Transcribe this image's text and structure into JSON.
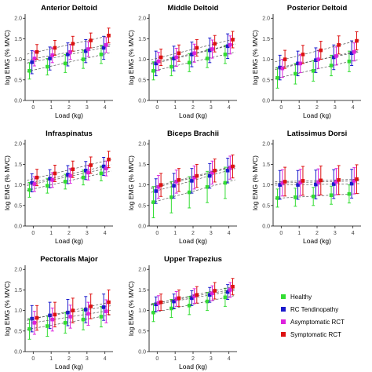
{
  "figure": {
    "legend": [
      {
        "name": "Healthy",
        "color": "#33dd33"
      },
      {
        "name": "RC Tendinopathy",
        "color": "#1a1acc"
      },
      {
        "name": "Asymptomatic RCT",
        "color": "#dd22dd"
      },
      {
        "name": "Symptomatic RCT",
        "color": "#dd1111"
      }
    ]
  },
  "chart_data": [
    {
      "type": "scatter",
      "title": "Anterior Deltoid",
      "xlabel": "Load (kg)",
      "ylabel": "log EMG (% MVC)",
      "xlim": [
        -0.45,
        4.45
      ],
      "ylim": [
        0,
        2.1
      ],
      "x_ticks": [
        0,
        1,
        2,
        3,
        4
      ],
      "y_ticks": [
        "0.0",
        "0.5",
        "1.0",
        "1.5",
        "2.0"
      ],
      "x": [
        0,
        1,
        2,
        3,
        4
      ],
      "grid": false,
      "series": [
        {
          "name": "Healthy",
          "color": "#33dd33",
          "values": [
            0.72,
            0.82,
            0.9,
            1.0,
            1.12
          ],
          "err": [
            0.2,
            0.2,
            0.22,
            0.22,
            0.22
          ]
        },
        {
          "name": "RC Tendinopathy",
          "color": "#1a1acc",
          "values": [
            0.93,
            1.02,
            1.12,
            1.2,
            1.28
          ],
          "err": [
            0.28,
            0.28,
            0.28,
            0.28,
            0.28
          ]
        },
        {
          "name": "Asymptomatic RCT",
          "color": "#dd22dd",
          "values": [
            1.02,
            1.1,
            1.18,
            1.25,
            1.35
          ],
          "err": [
            0.18,
            0.18,
            0.18,
            0.18,
            0.18
          ]
        },
        {
          "name": "Symptomatic RCT",
          "color": "#dd1111",
          "values": [
            1.18,
            1.28,
            1.38,
            1.46,
            1.58
          ],
          "err": [
            0.18,
            0.18,
            0.18,
            0.18,
            0.18
          ]
        }
      ]
    },
    {
      "type": "scatter",
      "title": "Middle Deltoid",
      "xlabel": "Load (kg)",
      "ylabel": "log EMG (% MVC)",
      "xlim": [
        -0.45,
        4.45
      ],
      "ylim": [
        0,
        2.1
      ],
      "x_ticks": [
        0,
        1,
        2,
        3,
        4
      ],
      "y_ticks": [
        "0.0",
        "0.5",
        "1.0",
        "1.5",
        "2.0"
      ],
      "x": [
        0,
        1,
        2,
        3,
        4
      ],
      "grid": false,
      "series": [
        {
          "name": "Healthy",
          "color": "#33dd33",
          "values": [
            0.72,
            0.82,
            0.92,
            1.02,
            1.12
          ],
          "err": [
            0.22,
            0.22,
            0.22,
            0.22,
            0.22
          ]
        },
        {
          "name": "RC Tendinopathy",
          "color": "#1a1acc",
          "values": [
            0.9,
            1.02,
            1.12,
            1.22,
            1.32
          ],
          "err": [
            0.3,
            0.3,
            0.3,
            0.3,
            0.3
          ]
        },
        {
          "name": "Asymptomatic RCT",
          "color": "#dd22dd",
          "values": [
            0.95,
            1.05,
            1.15,
            1.25,
            1.35
          ],
          "err": [
            0.22,
            0.22,
            0.22,
            0.22,
            0.22
          ]
        },
        {
          "name": "Symptomatic RCT",
          "color": "#dd1111",
          "values": [
            1.05,
            1.15,
            1.28,
            1.38,
            1.48
          ],
          "err": [
            0.2,
            0.2,
            0.2,
            0.2,
            0.2
          ]
        }
      ]
    },
    {
      "type": "scatter",
      "title": "Posterior Deltoid",
      "xlabel": "Load (kg)",
      "ylabel": "log EMG (% MVC)",
      "xlim": [
        -0.45,
        4.45
      ],
      "ylim": [
        0,
        2.1
      ],
      "x_ticks": [
        0,
        1,
        2,
        3,
        4
      ],
      "y_ticks": [
        "0.0",
        "0.5",
        "1.0",
        "1.5",
        "2.0"
      ],
      "x": [
        0,
        1,
        2,
        3,
        4
      ],
      "grid": false,
      "series": [
        {
          "name": "Healthy",
          "color": "#33dd33",
          "values": [
            0.55,
            0.65,
            0.72,
            0.85,
            0.95
          ],
          "err": [
            0.25,
            0.25,
            0.25,
            0.25,
            0.25
          ]
        },
        {
          "name": "RC Tendinopathy",
          "color": "#1a1acc",
          "values": [
            0.8,
            0.9,
            0.98,
            1.05,
            1.15
          ],
          "err": [
            0.3,
            0.3,
            0.3,
            0.3,
            0.3
          ]
        },
        {
          "name": "Asymptomatic RCT",
          "color": "#dd22dd",
          "values": [
            0.78,
            0.9,
            1.0,
            1.08,
            1.18
          ],
          "err": [
            0.22,
            0.22,
            0.22,
            0.22,
            0.22
          ]
        },
        {
          "name": "Symptomatic RCT",
          "color": "#dd1111",
          "values": [
            1.0,
            1.12,
            1.22,
            1.35,
            1.45
          ],
          "err": [
            0.22,
            0.22,
            0.22,
            0.22,
            0.22
          ]
        }
      ]
    },
    {
      "type": "scatter",
      "title": "Infraspinatus",
      "xlabel": "Load (kg)",
      "ylabel": "log EMG (% MVC)",
      "xlim": [
        -0.45,
        4.45
      ],
      "ylim": [
        0,
        2.1
      ],
      "x_ticks": [
        0,
        1,
        2,
        3,
        4
      ],
      "y_ticks": [
        "0.0",
        "0.5",
        "1.0",
        "1.5",
        "2.0"
      ],
      "x": [
        0,
        1,
        2,
        3,
        4
      ],
      "grid": false,
      "series": [
        {
          "name": "Healthy",
          "color": "#33dd33",
          "values": [
            0.88,
            0.98,
            1.08,
            1.18,
            1.28
          ],
          "err": [
            0.18,
            0.18,
            0.18,
            0.18,
            0.18
          ]
        },
        {
          "name": "RC Tendinopathy",
          "color": "#1a1acc",
          "values": [
            1.05,
            1.15,
            1.25,
            1.35,
            1.45
          ],
          "err": [
            0.22,
            0.22,
            0.22,
            0.22,
            0.22
          ]
        },
        {
          "name": "Asymptomatic RCT",
          "color": "#dd22dd",
          "values": [
            1.02,
            1.12,
            1.22,
            1.3,
            1.4
          ],
          "err": [
            0.18,
            0.18,
            0.18,
            0.18,
            0.18
          ]
        },
        {
          "name": "Symptomatic RCT",
          "color": "#dd1111",
          "values": [
            1.18,
            1.28,
            1.38,
            1.48,
            1.62
          ],
          "err": [
            0.2,
            0.2,
            0.2,
            0.2,
            0.2
          ]
        }
      ]
    },
    {
      "type": "scatter",
      "title": "Biceps Brachii",
      "xlabel": "Load (kg)",
      "ylabel": "log EMG (% MVC)",
      "xlim": [
        -0.45,
        4.45
      ],
      "ylim": [
        0,
        2.1
      ],
      "x_ticks": [
        0,
        1,
        2,
        3,
        4
      ],
      "y_ticks": [
        "0.0",
        "0.5",
        "1.0",
        "1.5",
        "2.0"
      ],
      "x": [
        0,
        1,
        2,
        3,
        4
      ],
      "grid": false,
      "series": [
        {
          "name": "Healthy",
          "color": "#33dd33",
          "values": [
            0.58,
            0.7,
            0.82,
            0.95,
            1.05
          ],
          "err": [
            0.38,
            0.38,
            0.38,
            0.38,
            0.38
          ]
        },
        {
          "name": "RC Tendinopathy",
          "color": "#1a1acc",
          "values": [
            0.85,
            0.98,
            1.1,
            1.22,
            1.35
          ],
          "err": [
            0.3,
            0.3,
            0.3,
            0.3,
            0.3
          ]
        },
        {
          "name": "Asymptomatic RCT",
          "color": "#dd22dd",
          "values": [
            0.95,
            1.08,
            1.18,
            1.3,
            1.42
          ],
          "err": [
            0.28,
            0.28,
            0.28,
            0.28,
            0.28
          ]
        },
        {
          "name": "Symptomatic RCT",
          "color": "#dd1111",
          "values": [
            1.0,
            1.12,
            1.22,
            1.35,
            1.45
          ],
          "err": [
            0.28,
            0.28,
            0.28,
            0.28,
            0.28
          ]
        }
      ]
    },
    {
      "type": "scatter",
      "title": "Latissimus Dorsi",
      "xlabel": "Load (kg)",
      "ylabel": "log EMG (% MVC)",
      "xlim": [
        -0.45,
        4.45
      ],
      "ylim": [
        0,
        2.1
      ],
      "x_ticks": [
        0,
        1,
        2,
        3,
        4
      ],
      "y_ticks": [
        "0.0",
        "0.5",
        "1.0",
        "1.5",
        "2.0"
      ],
      "x": [
        0,
        1,
        2,
        3,
        4
      ],
      "grid": false,
      "series": [
        {
          "name": "Healthy",
          "color": "#33dd33",
          "values": [
            0.68,
            0.7,
            0.72,
            0.75,
            0.78
          ],
          "err": [
            0.22,
            0.22,
            0.22,
            0.22,
            0.22
          ]
        },
        {
          "name": "RC Tendinopathy",
          "color": "#1a1acc",
          "values": [
            1.0,
            1.0,
            1.01,
            1.02,
            1.03
          ],
          "err": [
            0.35,
            0.35,
            0.35,
            0.35,
            0.35
          ]
        },
        {
          "name": "Asymptomatic RCT",
          "color": "#dd22dd",
          "values": [
            1.05,
            1.06,
            1.07,
            1.08,
            1.1
          ],
          "err": [
            0.32,
            0.32,
            0.32,
            0.32,
            0.32
          ]
        },
        {
          "name": "Symptomatic RCT",
          "color": "#dd1111",
          "values": [
            1.08,
            1.1,
            1.11,
            1.12,
            1.14
          ],
          "err": [
            0.35,
            0.35,
            0.35,
            0.35,
            0.35
          ]
        }
      ]
    },
    {
      "type": "scatter",
      "title": "Pectoralis Major",
      "xlabel": "Load (kg)",
      "ylabel": "log EMG (% MVC)",
      "xlim": [
        -0.45,
        4.45
      ],
      "ylim": [
        0,
        2.1
      ],
      "x_ticks": [
        0,
        1,
        2,
        3,
        4
      ],
      "y_ticks": [
        "0.0",
        "0.5",
        "1.0",
        "1.5",
        "2.0"
      ],
      "x": [
        0,
        1,
        2,
        3,
        4
      ],
      "grid": false,
      "series": [
        {
          "name": "Healthy",
          "color": "#33dd33",
          "values": [
            0.55,
            0.62,
            0.7,
            0.78,
            0.85
          ],
          "err": [
            0.25,
            0.25,
            0.25,
            0.25,
            0.25
          ]
        },
        {
          "name": "RC Tendinopathy",
          "color": "#1a1acc",
          "values": [
            0.8,
            0.88,
            0.95,
            1.02,
            1.08
          ],
          "err": [
            0.32,
            0.32,
            0.32,
            0.32,
            0.32
          ]
        },
        {
          "name": "Asymptomatic RCT",
          "color": "#dd22dd",
          "values": [
            0.7,
            0.78,
            0.85,
            0.92,
            0.98
          ],
          "err": [
            0.28,
            0.28,
            0.28,
            0.28,
            0.28
          ]
        },
        {
          "name": "Symptomatic RCT",
          "color": "#dd1111",
          "values": [
            0.82,
            0.9,
            1.0,
            1.1,
            1.2
          ],
          "err": [
            0.3,
            0.3,
            0.3,
            0.3,
            0.3
          ]
        }
      ]
    },
    {
      "type": "scatter",
      "title": "Upper Trapezius",
      "xlabel": "Load (kg)",
      "ylabel": "log EMG (% MVC)",
      "xlim": [
        -0.45,
        4.45
      ],
      "ylim": [
        0,
        2.1
      ],
      "x_ticks": [
        0,
        1,
        2,
        3,
        4
      ],
      "y_ticks": [
        "0.0",
        "0.5",
        "1.0",
        "1.5",
        "2.0"
      ],
      "x": [
        0,
        1,
        2,
        3,
        4
      ],
      "grid": false,
      "series": [
        {
          "name": "Healthy",
          "color": "#33dd33",
          "values": [
            0.95,
            1.05,
            1.12,
            1.22,
            1.32
          ],
          "err": [
            0.22,
            0.22,
            0.22,
            0.22,
            0.22
          ]
        },
        {
          "name": "RC Tendinopathy",
          "color": "#1a1acc",
          "values": [
            1.15,
            1.22,
            1.3,
            1.38,
            1.45
          ],
          "err": [
            0.18,
            0.18,
            0.18,
            0.18,
            0.18
          ]
        },
        {
          "name": "Asymptomatic RCT",
          "color": "#dd22dd",
          "values": [
            1.18,
            1.28,
            1.35,
            1.42,
            1.5
          ],
          "err": [
            0.18,
            0.18,
            0.18,
            0.18,
            0.18
          ]
        },
        {
          "name": "Symptomatic RCT",
          "color": "#dd1111",
          "values": [
            1.2,
            1.3,
            1.38,
            1.48,
            1.58
          ],
          "err": [
            0.2,
            0.2,
            0.2,
            0.2,
            0.2
          ]
        }
      ]
    }
  ]
}
